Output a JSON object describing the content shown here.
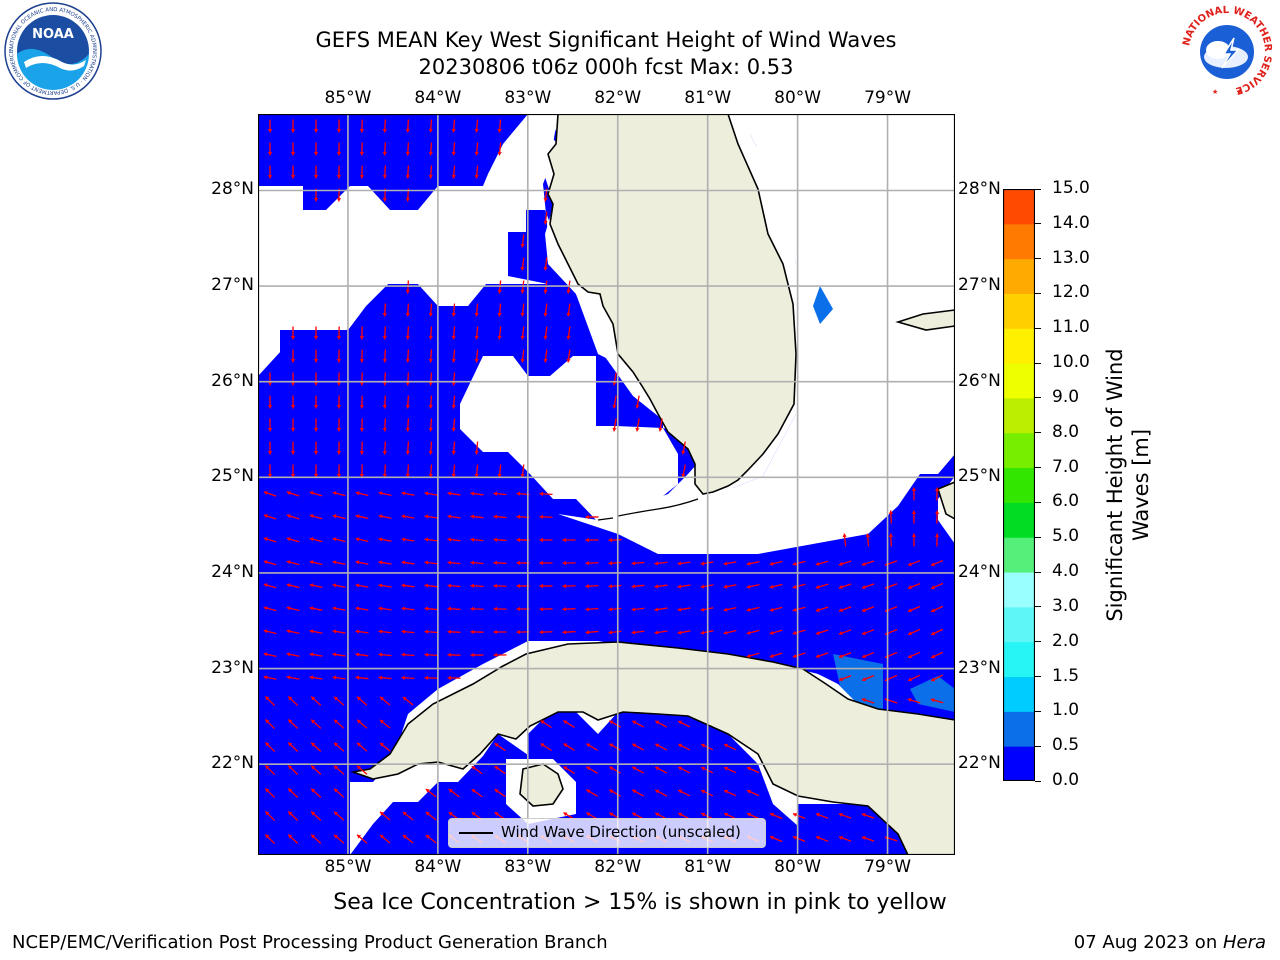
{
  "header": {
    "title_line1": "GEFS MEAN Key West Significant Height of Wind Waves",
    "title_line2": "20230806 t06z 000h fcst   Max: 0.53"
  },
  "map": {
    "lon_labels": [
      "85°W",
      "84°W",
      "83°W",
      "82°W",
      "81°W",
      "80°W",
      "79°W"
    ],
    "lat_labels": [
      "28°N",
      "27°N",
      "26°N",
      "25°N",
      "24°N",
      "23°N",
      "22°N"
    ],
    "extent": {
      "lon_min": -86.0,
      "lon_max": -78.25,
      "lat_min": 21.05,
      "lat_max": 28.8
    },
    "ocean_color": "#0000ff",
    "land_color": "#eeeedd",
    "arrow_color": "#ff0000",
    "legend_label": "Wind Wave Direction (unscaled)"
  },
  "colorbar": {
    "label": "Significant Height of Wind Waves [m]",
    "ticks": [
      "0.0",
      "0.5",
      "1.0",
      "1.5",
      "2.0",
      "3.0",
      "4.0",
      "5.0",
      "6.0",
      "7.0",
      "8.0",
      "9.0",
      "10.0",
      "11.0",
      "12.0",
      "13.0",
      "14.0",
      "15.0"
    ],
    "colors": [
      "#0000ff",
      "#0a6fe8",
      "#00ccff",
      "#27f5f5",
      "#5ef7f7",
      "#99ffff",
      "#55f07a",
      "#00dd22",
      "#33e600",
      "#77ee00",
      "#bbee00",
      "#eeff00",
      "#fff000",
      "#ffd000",
      "#ffaa00",
      "#ff7a00",
      "#ff4a00",
      "#ff1a00"
    ]
  },
  "footer": {
    "note": "Sea Ice Concentration > 15% is shown in pink to yellow",
    "left": "NCEP/EMC/Verification Post Processing Product Generation Branch",
    "right_date": "07 Aug 2023 on ",
    "right_host": "Hera"
  },
  "logos": {
    "noaa_text": "NOAA",
    "noaa_ring_text": "NATIONAL OCEANIC AND ATMOSPHERIC ADMINISTRATION · U.S. DEPARTMENT OF COMMERCE",
    "nws_ring_text": "NATIONAL WEATHER SERVICE"
  }
}
